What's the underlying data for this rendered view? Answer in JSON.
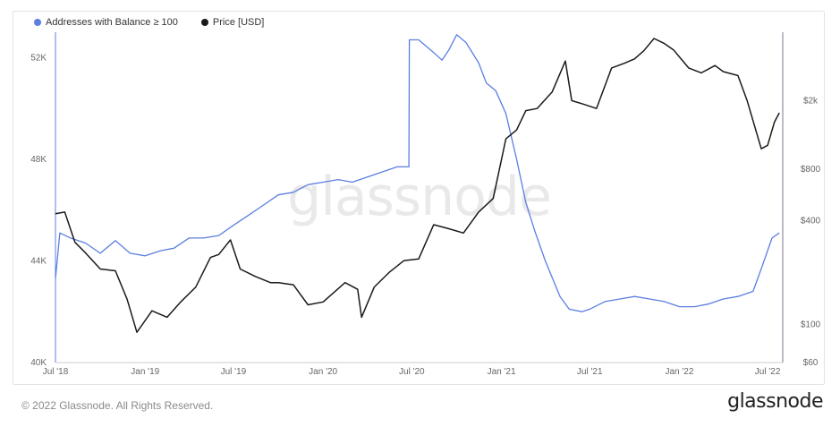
{
  "chart_data": {
    "type": "line",
    "legend_position": "top-left",
    "watermark": "glassnode",
    "series": [
      {
        "name": "Addresses with Balance ≥ 100",
        "color": "#5b7fe0",
        "axis": "left",
        "x": [
          "2018-07-01",
          "2018-07-10",
          "2018-08-01",
          "2018-09-01",
          "2018-10-01",
          "2018-11-01",
          "2018-12-01",
          "2019-01-01",
          "2019-02-01",
          "2019-03-01",
          "2019-04-01",
          "2019-05-01",
          "2019-06-01",
          "2019-07-01",
          "2019-08-01",
          "2019-09-01",
          "2019-10-01",
          "2019-11-01",
          "2019-12-01",
          "2020-01-01",
          "2020-02-01",
          "2020-03-01",
          "2020-04-01",
          "2020-05-01",
          "2020-06-01",
          "2020-06-25",
          "2020-06-26",
          "2020-07-15",
          "2020-08-15",
          "2020-09-01",
          "2020-09-15",
          "2020-10-01",
          "2020-10-20",
          "2020-11-15",
          "2020-12-01",
          "2020-12-20",
          "2021-01-10",
          "2021-02-01",
          "2021-02-20",
          "2021-03-10",
          "2021-04-01",
          "2021-05-01",
          "2021-05-20",
          "2021-06-15",
          "2021-07-01",
          "2021-08-01",
          "2021-09-01",
          "2021-10-01",
          "2021-11-01",
          "2021-12-01",
          "2022-01-01",
          "2022-02-01",
          "2022-03-01",
          "2022-04-01",
          "2022-05-01",
          "2022-06-01",
          "2022-06-20",
          "2022-07-10",
          "2022-07-25"
        ],
        "values": [
          43300,
          45100,
          44900,
          44700,
          44300,
          44800,
          44300,
          44200,
          44400,
          44500,
          44900,
          44900,
          45000,
          45400,
          45800,
          46200,
          46600,
          46700,
          47000,
          47100,
          47200,
          47100,
          47300,
          47500,
          47700,
          47700,
          52700,
          52700,
          52200,
          51900,
          52300,
          52900,
          52600,
          51800,
          51000,
          50700,
          49800,
          48000,
          46300,
          45200,
          44000,
          42600,
          42100,
          42000,
          42100,
          42400,
          42500,
          42600,
          42500,
          42400,
          42200,
          42200,
          42300,
          42500,
          42600,
          42800,
          43800,
          44900,
          45100
        ]
      },
      {
        "name": "Price [USD]",
        "color": "#1a1a1a",
        "axis": "right",
        "x": [
          "2018-07-01",
          "2018-07-20",
          "2018-08-10",
          "2018-09-01",
          "2018-10-01",
          "2018-11-01",
          "2018-11-25",
          "2018-12-15",
          "2019-01-15",
          "2019-02-15",
          "2019-03-15",
          "2019-04-15",
          "2019-05-15",
          "2019-06-01",
          "2019-06-25",
          "2019-07-15",
          "2019-08-15",
          "2019-09-15",
          "2019-10-01",
          "2019-11-01",
          "2019-12-01",
          "2020-01-01",
          "2020-02-15",
          "2020-03-12",
          "2020-03-20",
          "2020-04-15",
          "2020-05-15",
          "2020-06-15",
          "2020-07-15",
          "2020-08-15",
          "2020-09-15",
          "2020-10-15",
          "2020-11-15",
          "2020-12-15",
          "2021-01-10",
          "2021-02-01",
          "2021-02-20",
          "2021-03-15",
          "2021-04-15",
          "2021-05-12",
          "2021-05-25",
          "2021-06-20",
          "2021-07-15",
          "2021-08-15",
          "2021-09-10",
          "2021-10-01",
          "2021-10-20",
          "2021-11-10",
          "2021-12-01",
          "2021-12-20",
          "2022-01-20",
          "2022-02-15",
          "2022-03-15",
          "2022-04-01",
          "2022-05-01",
          "2022-05-20",
          "2022-06-18",
          "2022-07-01",
          "2022-07-15",
          "2022-07-25"
        ],
        "values": [
          440,
          450,
          300,
          260,
          210,
          205,
          140,
          90,
          120,
          110,
          135,
          165,
          245,
          255,
          310,
          210,
          190,
          175,
          175,
          170,
          130,
          135,
          175,
          160,
          110,
          165,
          200,
          235,
          240,
          380,
          360,
          340,
          450,
          540,
          1200,
          1350,
          1750,
          1800,
          2250,
          3400,
          2000,
          1900,
          1800,
          3100,
          3300,
          3500,
          3900,
          4600,
          4300,
          3950,
          3100,
          2900,
          3200,
          2950,
          2800,
          2000,
          1050,
          1100,
          1500,
          1700
        ]
      }
    ],
    "x_ticks": [
      "Jul '18",
      "Jan '19",
      "Jul '19",
      "Jan '20",
      "Jul '20",
      "Jan '21",
      "Jul '21",
      "Jan '22",
      "Jul '22"
    ],
    "x_tick_dates": [
      "2018-07-01",
      "2019-01-01",
      "2019-07-01",
      "2020-01-01",
      "2020-07-01",
      "2021-01-01",
      "2021-07-01",
      "2022-01-01",
      "2022-07-01"
    ],
    "x_range": [
      "2018-07-01",
      "2022-08-01"
    ],
    "y_left": {
      "ticks": [
        "40K",
        "44K",
        "48K",
        "52K"
      ],
      "tick_values": [
        40000,
        44000,
        48000,
        52000
      ],
      "range": [
        40000,
        53000
      ]
    },
    "y_right": {
      "scale": "log",
      "ticks": [
        "$60",
        "$100",
        "$400",
        "$800",
        "$2k"
      ],
      "tick_values": [
        60,
        100,
        400,
        800,
        2000
      ],
      "range": [
        60,
        5000
      ]
    },
    "grid": false
  },
  "footer": {
    "copyright": "© 2022 Glassnode. All Rights Reserved.",
    "brand": "glassnode"
  }
}
